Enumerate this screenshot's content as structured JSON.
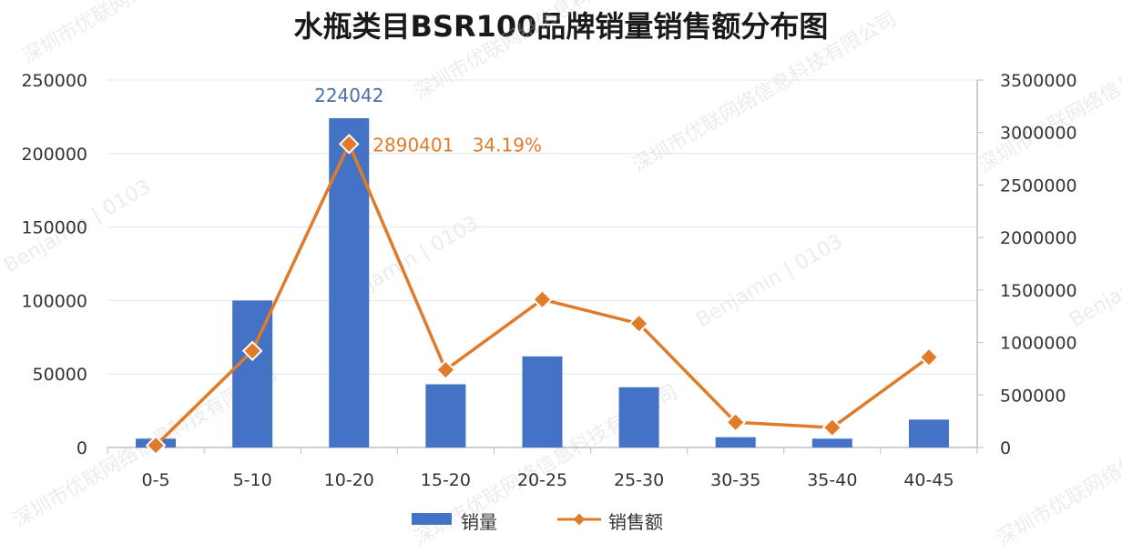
{
  "chart_data": {
    "type": "bar",
    "title": "水瓶类目BSR100品牌销量销售额分布图",
    "categories": [
      "0-5",
      "5-10",
      "10-20",
      "15-20",
      "20-25",
      "25-30",
      "30-35",
      "35-40",
      "40-45"
    ],
    "series": [
      {
        "name": "销量",
        "type": "bar",
        "axis": "left",
        "color": "#4472c4",
        "values": [
          6000,
          100000,
          224042,
          43000,
          62000,
          41000,
          7000,
          6000,
          19000
        ]
      },
      {
        "name": "销售额",
        "type": "line",
        "axis": "right",
        "color": "#e07b2a",
        "values": [
          20000,
          920000,
          2890401,
          740000,
          1410000,
          1180000,
          240000,
          190000,
          860000
        ]
      }
    ],
    "y_left": {
      "ylim": [
        0,
        250000
      ],
      "ticks": [
        "0",
        "50000",
        "100000",
        "150000",
        "200000",
        "250000"
      ]
    },
    "y_right": {
      "ylim": [
        0,
        3500000
      ],
      "ticks": [
        "0",
        "500000",
        "1000000",
        "1500000",
        "2000000",
        "2500000",
        "3000000",
        "3500000"
      ]
    },
    "annotations": {
      "bar_peak_label": "224042",
      "line_peak_label": "2890401",
      "line_peak_share": "34.19%"
    },
    "grid": true,
    "legend": "bottom"
  },
  "watermarks": [
    "深圳市优联网络信息科技有限公司",
    "Benjamin | 0103"
  ]
}
